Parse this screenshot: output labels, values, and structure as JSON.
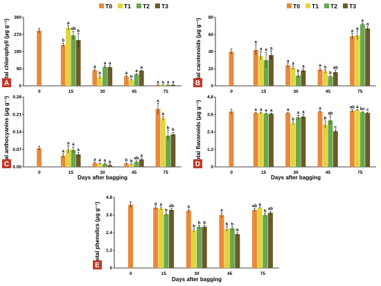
{
  "colors": {
    "T0": "#e8893a",
    "T1": "#e2d43a",
    "T2": "#6aa84f",
    "T3": "#6b5a2a",
    "panel_label_bg": "#c0392b"
  },
  "chart_data": [
    {
      "type": "bar",
      "panel": "A",
      "categories": [
        "0",
        "15",
        "30",
        "45",
        "75"
      ],
      "ylabel": "Total chlorophyll (μg g⁻¹)",
      "ylim": [
        0,
        360
      ],
      "yticks": [
        "0",
        "90",
        "180",
        "270",
        "360"
      ],
      "series": [
        {
          "name": "T0",
          "values": [
            290,
            215,
            82,
            50,
            5
          ],
          "errors": [
            12,
            10,
            6,
            5,
            1
          ]
        },
        {
          "name": "T1",
          "values": [
            null,
            305,
            45,
            30,
            5
          ],
          "errors": [
            null,
            12,
            8,
            4,
            1
          ]
        },
        {
          "name": "T2",
          "values": [
            null,
            265,
            100,
            60,
            5
          ],
          "errors": [
            null,
            22,
            6,
            5,
            1
          ]
        },
        {
          "name": "T3",
          "values": [
            null,
            240,
            98,
            80,
            5
          ],
          "errors": [
            null,
            35,
            8,
            3,
            1
          ]
        }
      ],
      "sig": [
        [],
        [
          "b",
          "a",
          "ab",
          "b"
        ],
        [
          "a",
          "b",
          "a",
          "a"
        ],
        [
          "a",
          "b",
          "a",
          "a"
        ],
        [
          "a",
          "a",
          "a",
          "a"
        ]
      ],
      "legend": "top"
    },
    {
      "type": "bar",
      "panel": "B",
      "categories": [
        "0",
        "15",
        "30",
        "45",
        "75"
      ],
      "ylabel": "Total carotenoids (μg g⁻¹)",
      "ylim": [
        0,
        80
      ],
      "yticks": [
        "0",
        "20",
        "40",
        "60",
        "80"
      ],
      "series": [
        {
          "name": "T0",
          "values": [
            40,
            42,
            24,
            19,
            58
          ],
          "errors": [
            3,
            6,
            2,
            2,
            3
          ]
        },
        {
          "name": "T1",
          "values": [
            null,
            35,
            21,
            17,
            59
          ],
          "errors": [
            null,
            5,
            2,
            2,
            5
          ]
        },
        {
          "name": "T2",
          "values": [
            null,
            30,
            12,
            11,
            72
          ],
          "errors": [
            null,
            9,
            2,
            1,
            1
          ]
        },
        {
          "name": "T3",
          "values": [
            null,
            36,
            18,
            16,
            67
          ],
          "errors": [
            null,
            5,
            2,
            2,
            2
          ]
        }
      ],
      "sig": [
        [],
        [
          "a",
          "a",
          "a",
          "a"
        ],
        [
          "a",
          "a",
          "b",
          "a"
        ],
        [
          "a",
          "a",
          "b",
          "ab"
        ],
        [
          "a",
          "a",
          "a",
          "a"
        ]
      ],
      "legend": "top"
    },
    {
      "type": "bar",
      "panel": "C",
      "categories": [
        "0",
        "15",
        "30",
        "45",
        "75"
      ],
      "ylabel": "Total anthocyanins (μg g⁻¹)",
      "xlabel": "Days after bagging",
      "ylim": [
        0,
        0.28
      ],
      "yticks": [
        "0.00",
        "0.07",
        "0.14",
        "0.21",
        "0.28"
      ],
      "series": [
        {
          "name": "T0",
          "values": [
            0.075,
            0.045,
            0.015,
            0.013,
            0.232
          ],
          "errors": [
            0.008,
            0.008,
            0.003,
            0.003,
            0.022
          ]
        },
        {
          "name": "T1",
          "values": [
            null,
            0.07,
            0.013,
            0.01,
            0.195
          ],
          "errors": [
            null,
            0.015,
            0.003,
            0.002,
            0.008
          ]
        },
        {
          "name": "T2",
          "values": [
            null,
            0.068,
            0.012,
            0.02,
            0.125
          ],
          "errors": [
            null,
            0.012,
            0.003,
            0.005,
            0.02
          ]
        },
        {
          "name": "T3",
          "values": [
            null,
            0.05,
            0.007,
            0.03,
            0.13
          ],
          "errors": [
            null,
            0.008,
            0.002,
            0.005,
            0.008
          ]
        }
      ],
      "sig": [
        [],
        [
          "a",
          "a",
          "a",
          "a"
        ],
        [
          "a",
          "a",
          "a",
          "b"
        ],
        [
          "b",
          "b",
          "ab",
          "a"
        ],
        [
          "a",
          "a",
          "b",
          "b"
        ]
      ]
    },
    {
      "type": "bar",
      "panel": "D",
      "categories": [
        "0",
        "15",
        "30",
        "45",
        "75"
      ],
      "ylabel": "Total flavonoids (μg g⁻¹)",
      "xlabel": "Days after bagging",
      "ylim": [
        0,
        4.8
      ],
      "yticks": [
        "0",
        "1.2",
        "2.4",
        "3.6",
        "4.8"
      ],
      "series": [
        {
          "name": "T0",
          "values": [
            3.8,
            3.7,
            3.7,
            3.8,
            3.85
          ],
          "errors": [
            0.15,
            0.05,
            0.05,
            0.05,
            0.08
          ]
        },
        {
          "name": "T1",
          "values": [
            null,
            3.7,
            3.0,
            2.9,
            3.9
          ],
          "errors": [
            null,
            0.05,
            0.1,
            0.25,
            0.05
          ]
        },
        {
          "name": "T2",
          "values": [
            null,
            3.65,
            3.4,
            3.2,
            3.75
          ],
          "errors": [
            null,
            0.05,
            0.15,
            0.3,
            0.05
          ]
        },
        {
          "name": "T3",
          "values": [
            null,
            3.65,
            3.45,
            2.45,
            3.7
          ],
          "errors": [
            null,
            0.05,
            0.15,
            0.1,
            0.05
          ]
        }
      ],
      "sig": [
        [],
        [
          "a",
          "a",
          "a",
          "a"
        ],
        [
          "a",
          "b",
          "a",
          "a"
        ],
        [
          "a",
          "b",
          "ab",
          "c"
        ],
        [
          "ab",
          "a",
          "bc",
          "c"
        ]
      ]
    },
    {
      "type": "bar",
      "panel": "E",
      "categories": [
        "0",
        "15",
        "30",
        "45",
        "75"
      ],
      "ylabel": "Total phenolics (μg g⁻¹)",
      "xlabel": "Days after bagging",
      "ylim": [
        0,
        4.8
      ],
      "yticks": [
        "0",
        "1.2",
        "2.4",
        "3.6",
        "4.8"
      ],
      "series": [
        {
          "name": "T0",
          "values": [
            4.3,
            4.1,
            3.9,
            3.6,
            3.95
          ],
          "errors": [
            0.2,
            0.1,
            0.1,
            0.15,
            0.1
          ]
        },
        {
          "name": "T1",
          "values": [
            null,
            4.05,
            2.55,
            2.65,
            4.1
          ],
          "errors": [
            null,
            0.1,
            0.1,
            0.15,
            0.05
          ]
        },
        {
          "name": "T2",
          "values": [
            null,
            3.65,
            2.8,
            2.7,
            3.6
          ],
          "errors": [
            null,
            0.1,
            0.1,
            0.1,
            0.1
          ]
        },
        {
          "name": "T3",
          "values": [
            null,
            3.95,
            2.8,
            2.3,
            3.75
          ],
          "errors": [
            null,
            0.1,
            0.1,
            0.1,
            0.1
          ]
        }
      ],
      "sig": [
        [],
        [
          "a",
          "a",
          "b",
          "ab"
        ],
        [
          "a",
          "b",
          "b",
          "b"
        ],
        [
          "a",
          "b",
          "b",
          "b"
        ],
        [
          "ab",
          "a",
          "b",
          "ab"
        ]
      ]
    }
  ]
}
